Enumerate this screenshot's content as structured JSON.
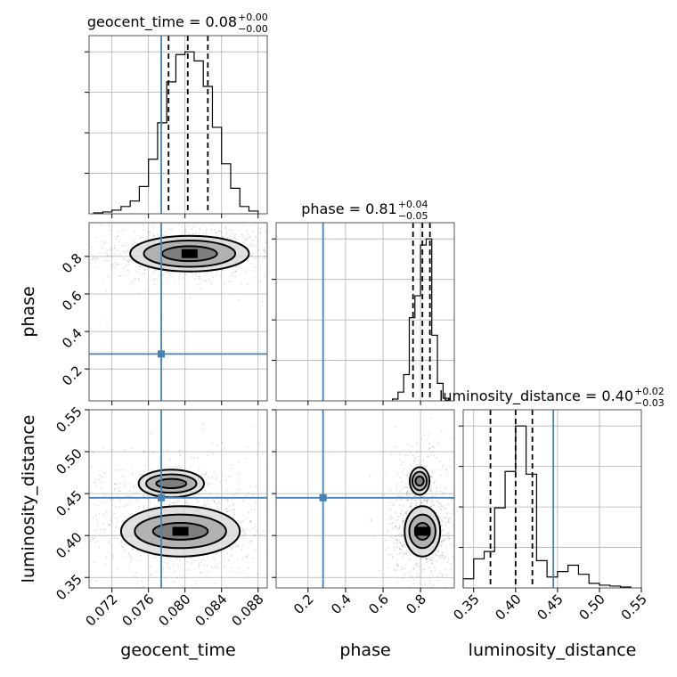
{
  "chart_data": {
    "type": "corner",
    "parameters": [
      {
        "name": "geocent_time",
        "label": "geocent_time",
        "range": [
          0.0695,
          0.089
        ],
        "ticks": [
          "0.072",
          "0.076",
          "0.080",
          "0.084",
          "0.088"
        ],
        "tick_values": [
          0.072,
          0.076,
          0.08,
          0.084,
          0.088
        ],
        "truth": 0.0774,
        "median": 0.0803,
        "q_low": 0.0782,
        "q_high": 0.0825,
        "title_main": "geocent_time = 0.08",
        "title_plus": "+0.00",
        "title_minus": "−0.00",
        "hist_bin_edges": [
          0.07,
          0.071,
          0.072,
          0.073,
          0.074,
          0.075,
          0.076,
          0.077,
          0.078,
          0.079,
          0.08,
          0.081,
          0.082,
          0.083,
          0.084,
          0.085,
          0.086,
          0.087,
          0.088
        ],
        "hist_counts": [
          1,
          2,
          4,
          8,
          14,
          30,
          60,
          100,
          145,
          175,
          178,
          168,
          140,
          95,
          55,
          28,
          8,
          3
        ]
      },
      {
        "name": "phase",
        "label": "phase",
        "range": [
          0.03,
          0.98
        ],
        "ticks": [
          "0.2",
          "0.4",
          "0.6",
          "0.8"
        ],
        "tick_values": [
          0.2,
          0.4,
          0.6,
          0.8
        ],
        "truth": 0.28,
        "median": 0.81,
        "q_low": 0.76,
        "q_high": 0.85,
        "title_main": "phase = 0.81",
        "title_plus": "+0.04",
        "title_minus": "−0.05",
        "hist_bin_edges": [
          0.65,
          0.68,
          0.71,
          0.74,
          0.77,
          0.8,
          0.83,
          0.86,
          0.89,
          0.92,
          0.95
        ],
        "hist_counts": [
          2,
          10,
          30,
          95,
          120,
          178,
          185,
          75,
          20,
          3
        ]
      },
      {
        "name": "luminosity_distance",
        "label": "luminosity_distance",
        "range": [
          0.3375,
          0.55
        ],
        "ticks": [
          "0.35",
          "0.40",
          "0.45",
          "0.50",
          "0.55"
        ],
        "tick_values": [
          0.35,
          0.4,
          0.45,
          0.5,
          0.55
        ],
        "truth": 0.445,
        "median": 0.4,
        "q_low": 0.37,
        "q_high": 0.42,
        "title_main": "luminosity_distance = 0.40",
        "title_plus": "+0.02",
        "title_minus": "−0.03",
        "hist_bin_edges": [
          0.3375,
          0.35,
          0.3625,
          0.375,
          0.3875,
          0.4,
          0.4125,
          0.425,
          0.4375,
          0.45,
          0.4625,
          0.475,
          0.4875,
          0.5,
          0.5125,
          0.525,
          0.5375
        ],
        "hist_counts": [
          10,
          32,
          40,
          88,
          128,
          178,
          125,
          30,
          12,
          18,
          25,
          15,
          5,
          3,
          2,
          1
        ]
      }
    ],
    "contours": {
      "geocent_time__phase": {
        "centers": [
          [
            0.0805,
            0.815
          ]
        ],
        "levels": [
          [
            0.003,
            0.04
          ],
          [
            0.005,
            0.07
          ],
          [
            0.0065,
            0.095
          ]
        ]
      },
      "geocent_time__luminosity_distance": {
        "centers": [
          [
            0.0795,
            0.405
          ],
          [
            0.0785,
            0.462
          ]
        ],
        "levels": [
          [
            0.003,
            0.01
          ],
          [
            0.005,
            0.02
          ],
          [
            0.0065,
            0.03
          ]
        ]
      },
      "phase__luminosity_distance": {
        "centers": [
          [
            0.81,
            0.405
          ],
          [
            0.795,
            0.465
          ]
        ],
        "levels": [
          [
            0.04,
            0.01
          ],
          [
            0.07,
            0.02
          ],
          [
            0.095,
            0.03
          ]
        ]
      }
    },
    "truth_color": "#4682b4",
    "grid": true
  }
}
